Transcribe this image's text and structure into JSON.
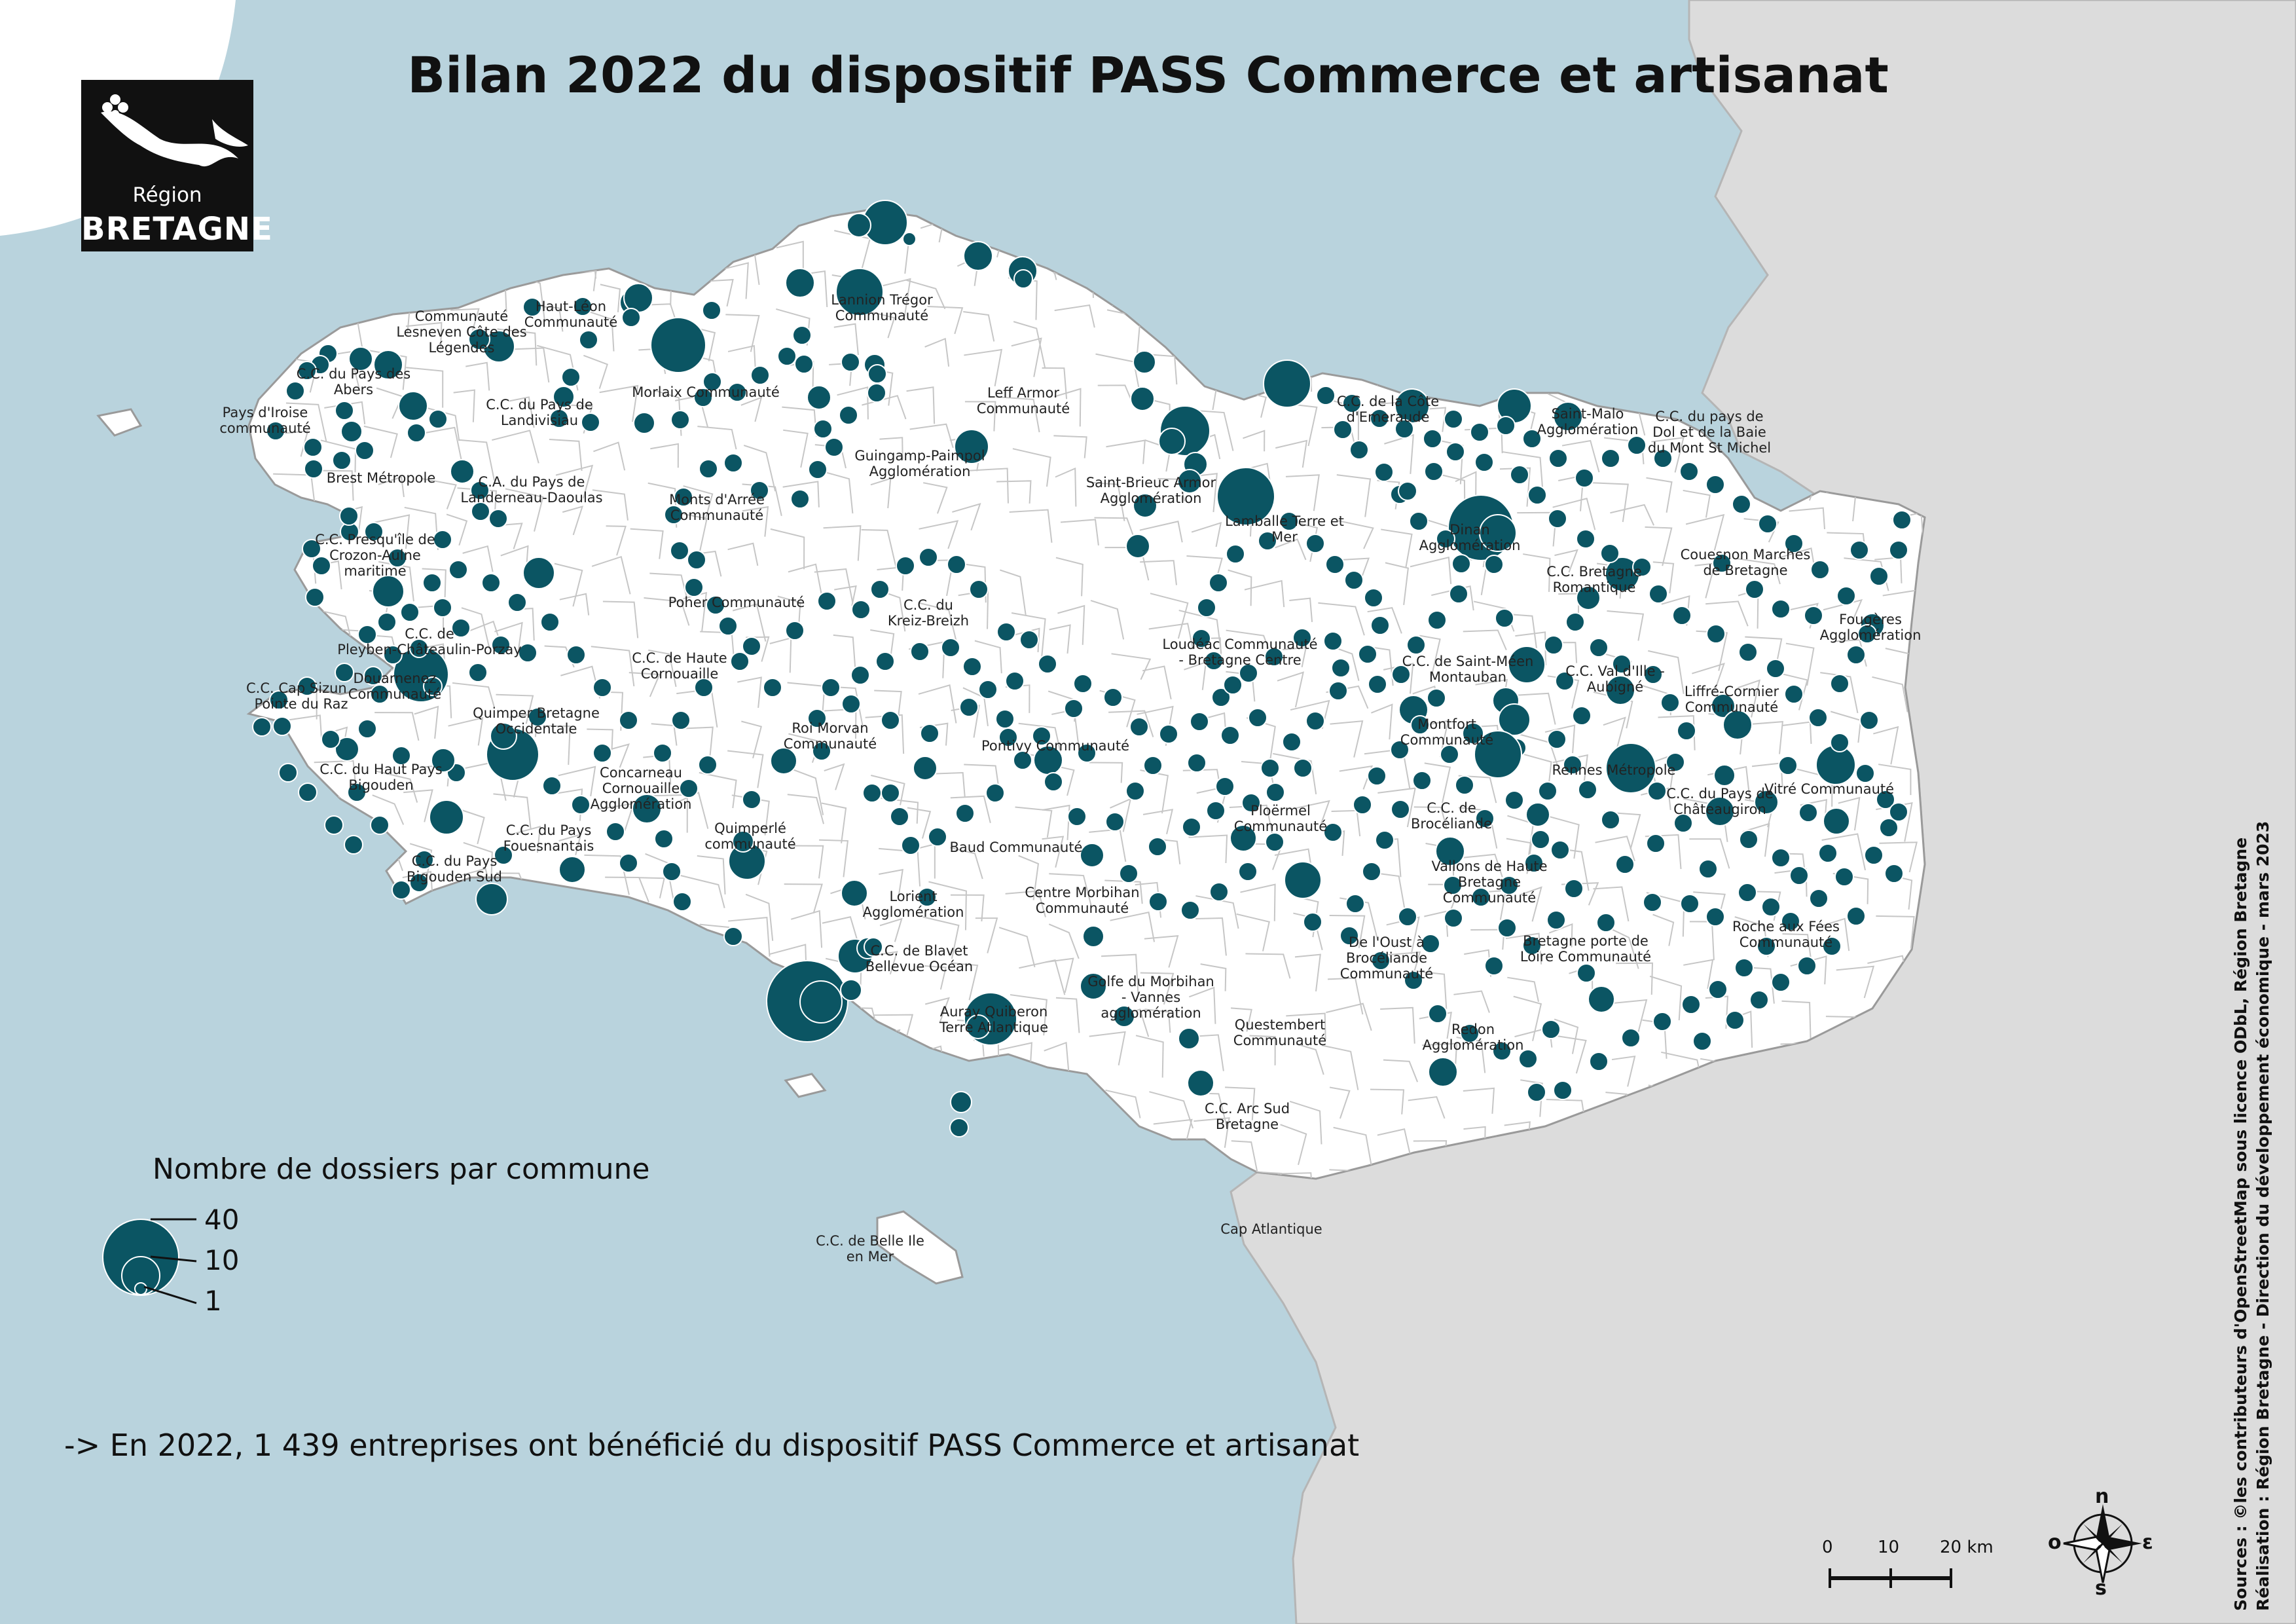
{
  "title": "Bilan 2022 du dispositif PASS Commerce et artisanat",
  "logo": {
    "line1": "Région",
    "line2": "BRETAGNE"
  },
  "legend": {
    "title": "Nombre de dossiers par commune",
    "values": [
      "40",
      "10",
      "1"
    ]
  },
  "note": "-> En 2022, 1 439 entreprises ont bénéficié du dispositif PASS Commerce et artisanat",
  "scale": {
    "labels": [
      "0",
      "10",
      "20 km"
    ]
  },
  "compass": {
    "n": "n",
    "s": "s",
    "e": "ε",
    "w": "o"
  },
  "sources": [
    "Sources : ©les contributeurs d'OpenStreetMap sous licence ODbL, Région Bretagne",
    "Réalisation : Région Bretagne - Direction du développement économique - mars 2023"
  ],
  "colors": {
    "sea": "#b9d3dd",
    "land": "#ffffff",
    "neighbour": "#dcdcdc",
    "bubble": "#0b5563"
  },
  "epci_labels": [
    "Communauté Lesneven Côte des Légendes",
    "Haut-Léon Communauté",
    "C.C. du Pays des Abers",
    "Pays d'Iroise communauté",
    "Brest Métropole",
    "C.C. du Pays de Landivisiau",
    "Morlaix Communauté",
    "Lannion Trégor Communauté",
    "Leff Armor Communauté",
    "Guingamp-Paimpol Agglomération",
    "C.A. du Pays de Landerneau-Daoulas",
    "Monts d'Arrée Communauté",
    "C.C. Presqu'île de Crozon-Aulne maritime",
    "C.C. de Pleyben-Châteaulin-Porzay",
    "Poher Communauté",
    "C.C. du Kreiz-Breizh",
    "C.C. de Haute Cornouaille",
    "C.C. Cap Sizun - Pointe du Raz",
    "Douarnenez Communauté",
    "Quimper Bretagne Occidentale",
    "C.C. du Haut Pays Bigouden",
    "Concarneau Cornouaille Agglomération",
    "C.C. du Pays Fouesnantais",
    "C.C. du Pays Bigouden Sud",
    "Quimperlé communauté",
    "Roi Morvan Communauté",
    "Lorient Agglomération",
    "C.C. de Blavet Bellevue Océan",
    "Baud Communauté",
    "Pontivy Communauté",
    "Centre Morbihan Communauté",
    "Auray Quiberon Terre Atlantique",
    "Golfe du Morbihan - Vannes agglomération",
    "Saint-Brieuc Armor Agglomération",
    "Lamballe Terre et Mer",
    "Loudéac Communauté - Bretagne Centre",
    "Ploërmel Communauté",
    "De l'Oust à Brocéliande Communauté",
    "Questembert Communauté",
    "C.C. Arc Sud Bretagne",
    "Redon Agglomération",
    "Dinan Agglomération",
    "C.C. de la Côte d'Emeraude",
    "Saint-Malo Agglomération",
    "C.C. du pays de Dol et de la Baie du Mont St Michel",
    "C.C. Bretagne Romantique",
    "Couesnon Marches de Bretagne",
    "Fougères Agglomération",
    "C.C. de Saint-Méen Montauban",
    "Montfort Communauté",
    "C.C. Val d'Ille - Aubigné",
    "Liffré-Cormier Communauté",
    "Rennes Métropole",
    "C.C. du Pays de Châteaugiron",
    "Vitré Communauté",
    "C.C. de Brocéliande",
    "Vallons de Haute Bretagne Communauté",
    "Bretagne porte de Loire Communauté",
    "Roche aux Fées Communauté",
    "C.C. de Belle Ile en Mer",
    "Cap Atlantique"
  ]
}
